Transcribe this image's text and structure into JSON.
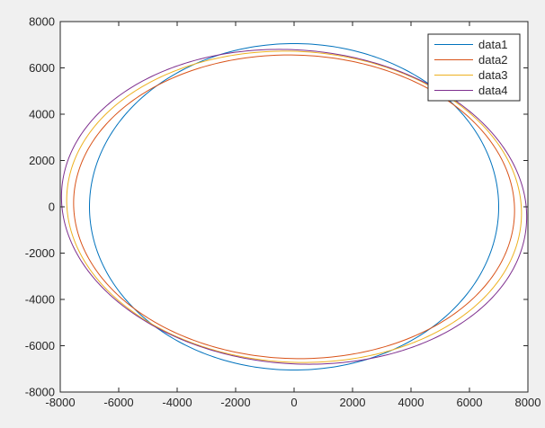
{
  "chart_data": {
    "type": "line",
    "title": "",
    "xlabel": "",
    "ylabel": "",
    "xlim": [
      -8000,
      8000
    ],
    "ylim": [
      -8000,
      8000
    ],
    "xticks": [
      -8000,
      -6000,
      -4000,
      -2000,
      0,
      2000,
      4000,
      6000,
      8000
    ],
    "yticks": [
      -8000,
      -6000,
      -4000,
      -2000,
      0,
      2000,
      4000,
      6000,
      8000
    ],
    "grid": false,
    "legend_position": "top-right",
    "series": [
      {
        "name": "data1",
        "color": "#0072BD",
        "shape": "ellipse",
        "center": [
          0,
          0
        ],
        "semi_axes": [
          7000,
          7050
        ],
        "rotation_deg": 0
      },
      {
        "name": "data2",
        "color": "#D95319",
        "shape": "ellipse",
        "center": [
          0,
          0
        ],
        "semi_axes": [
          7550,
          6550
        ],
        "rotation_deg": -5
      },
      {
        "name": "data3",
        "color": "#EDB120",
        "shape": "ellipse",
        "center": [
          0,
          0
        ],
        "semi_axes": [
          7800,
          6700
        ],
        "rotation_deg": -8
      },
      {
        "name": "data4",
        "color": "#7E2F8E",
        "shape": "ellipse",
        "center": [
          0,
          0
        ],
        "semi_axes": [
          8000,
          6750
        ],
        "rotation_deg": -11
      }
    ]
  }
}
